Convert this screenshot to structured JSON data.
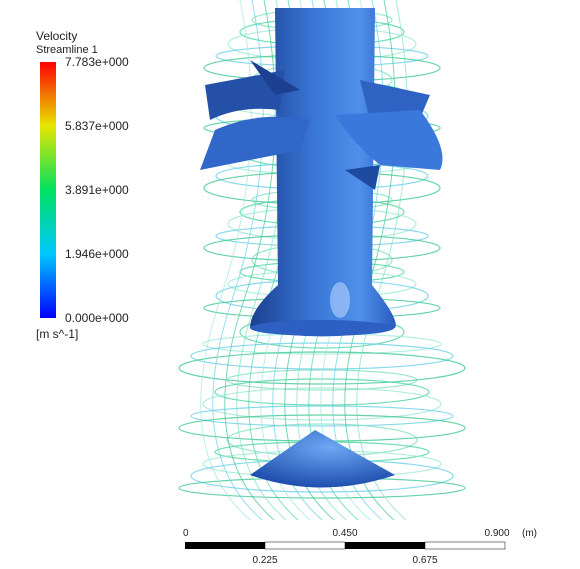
{
  "legend": {
    "title": "Velocity",
    "subtitle": "Streamline 1",
    "labels": [
      "7.783e+000",
      "5.837e+000",
      "3.891e+000",
      "1.946e+000",
      "0.000e+000"
    ],
    "unit": "[m s^-1]"
  },
  "scale_bar": {
    "top_labels": [
      "0",
      "0.450",
      "0.900"
    ],
    "unit": "(m)",
    "bottom_labels": [
      "0.225",
      "0.675"
    ]
  }
}
